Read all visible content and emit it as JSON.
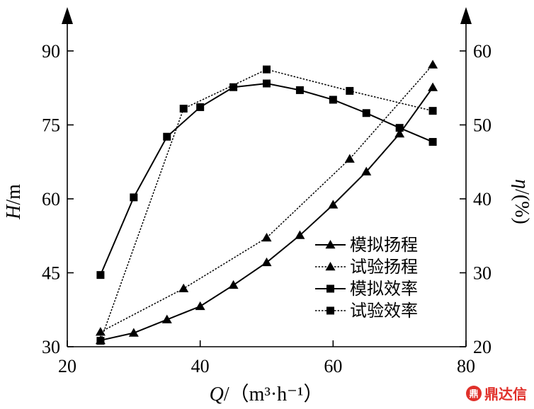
{
  "chart_data": {
    "type": "line",
    "xlabel_var": "Q",
    "xlabel_unit": "/（m³·h⁻¹）",
    "ylabel_left_var": "H",
    "ylabel_left_unit": "/m",
    "ylabel_right_var": "η",
    "ylabel_right_unit": "/(%)",
    "xlim": [
      20,
      80
    ],
    "ylim_left": [
      30,
      90
    ],
    "ylim_right": [
      20,
      60
    ],
    "x_ticks": [
      "20",
      "40",
      "60",
      "80"
    ],
    "y_left_ticks": [
      "30",
      "45",
      "60",
      "75",
      "90"
    ],
    "y_right_ticks": [
      "20",
      "30",
      "40",
      "50",
      "60"
    ],
    "legend_position": "center-right",
    "series": [
      {
        "name": "模拟扬程",
        "axis": "left",
        "marker": "triangle",
        "dash": "solid",
        "x": [
          25,
          30,
          35,
          40,
          45,
          50,
          55,
          60,
          65,
          70,
          75
        ],
        "y": [
          31.3,
          32.8,
          35.5,
          38.2,
          42.5,
          47.1,
          52.6,
          58.8,
          65.5,
          73.2,
          82.6
        ]
      },
      {
        "name": "试验扬程",
        "axis": "left",
        "marker": "triangle",
        "dash": "dotted",
        "x": [
          25,
          37.5,
          50,
          62.5,
          75
        ],
        "y": [
          33.0,
          41.8,
          52.1,
          68.1,
          87.2
        ]
      },
      {
        "name": "模拟效率",
        "axis": "right",
        "marker": "square",
        "dash": "solid",
        "x": [
          25,
          30,
          35,
          40,
          45,
          50,
          55,
          60,
          65,
          70,
          75
        ],
        "y": [
          29.7,
          40.2,
          48.4,
          52.4,
          55.1,
          55.6,
          54.7,
          53.4,
          51.6,
          49.6,
          47.7
        ]
      },
      {
        "name": "试验效率",
        "axis": "right",
        "marker": "square",
        "dash": "dotted",
        "x": [
          25,
          37.5,
          50,
          62.5,
          75
        ],
        "y": [
          20.8,
          52.2,
          57.5,
          54.6,
          51.9
        ]
      }
    ]
  },
  "watermark": {
    "text": "鼎达信",
    "mark": "鼎"
  }
}
